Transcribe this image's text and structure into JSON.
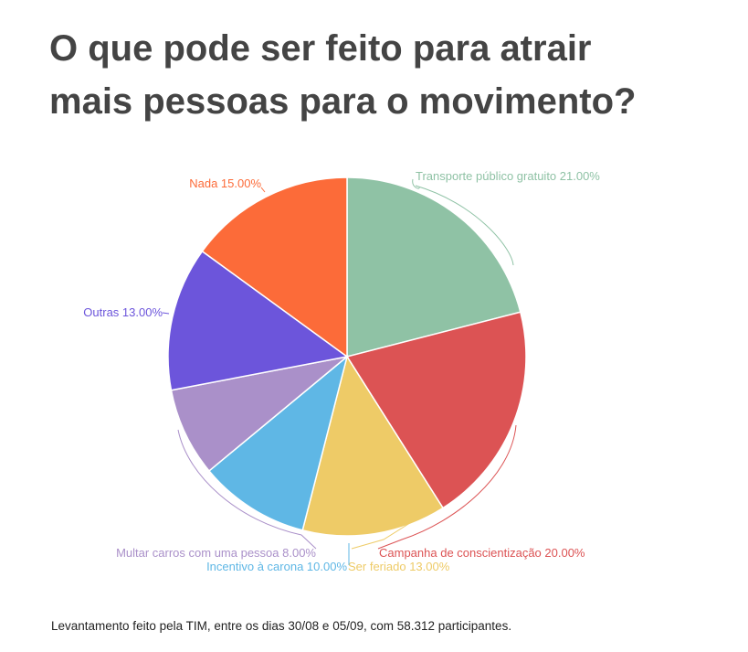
{
  "title_lines": [
    "O que pode ser feito para atrair",
    "mais pessoas para o movimento?"
  ],
  "footer": "Levantamento feito pela TIM, entre os dias 30/08 e 05/09, com 58.312 participantes.",
  "chart_data": {
    "type": "pie",
    "slices": [
      {
        "label": "Transporte público gratuito",
        "value": 21.0,
        "display": "21.00%",
        "color": "#8fc2a5"
      },
      {
        "label": "Campanha de conscientização",
        "value": 20.0,
        "display": "20.00%",
        "color": "#dc5354"
      },
      {
        "label": "Ser feriado",
        "value": 13.0,
        "display": "13.00%",
        "color": "#eecb67"
      },
      {
        "label": "Incentivo à carona",
        "value": 10.0,
        "display": "10.00%",
        "color": "#5fb7e5"
      },
      {
        "label": "Multar carros com uma pessoa",
        "value": 8.0,
        "display": "8.00%",
        "color": "#aa90c9"
      },
      {
        "label": "Outras",
        "value": 13.0,
        "display": "13.00%",
        "color": "#6c55db"
      },
      {
        "label": "Nada",
        "value": 15.0,
        "display": "15.00%",
        "color": "#fc6b39"
      }
    ]
  }
}
